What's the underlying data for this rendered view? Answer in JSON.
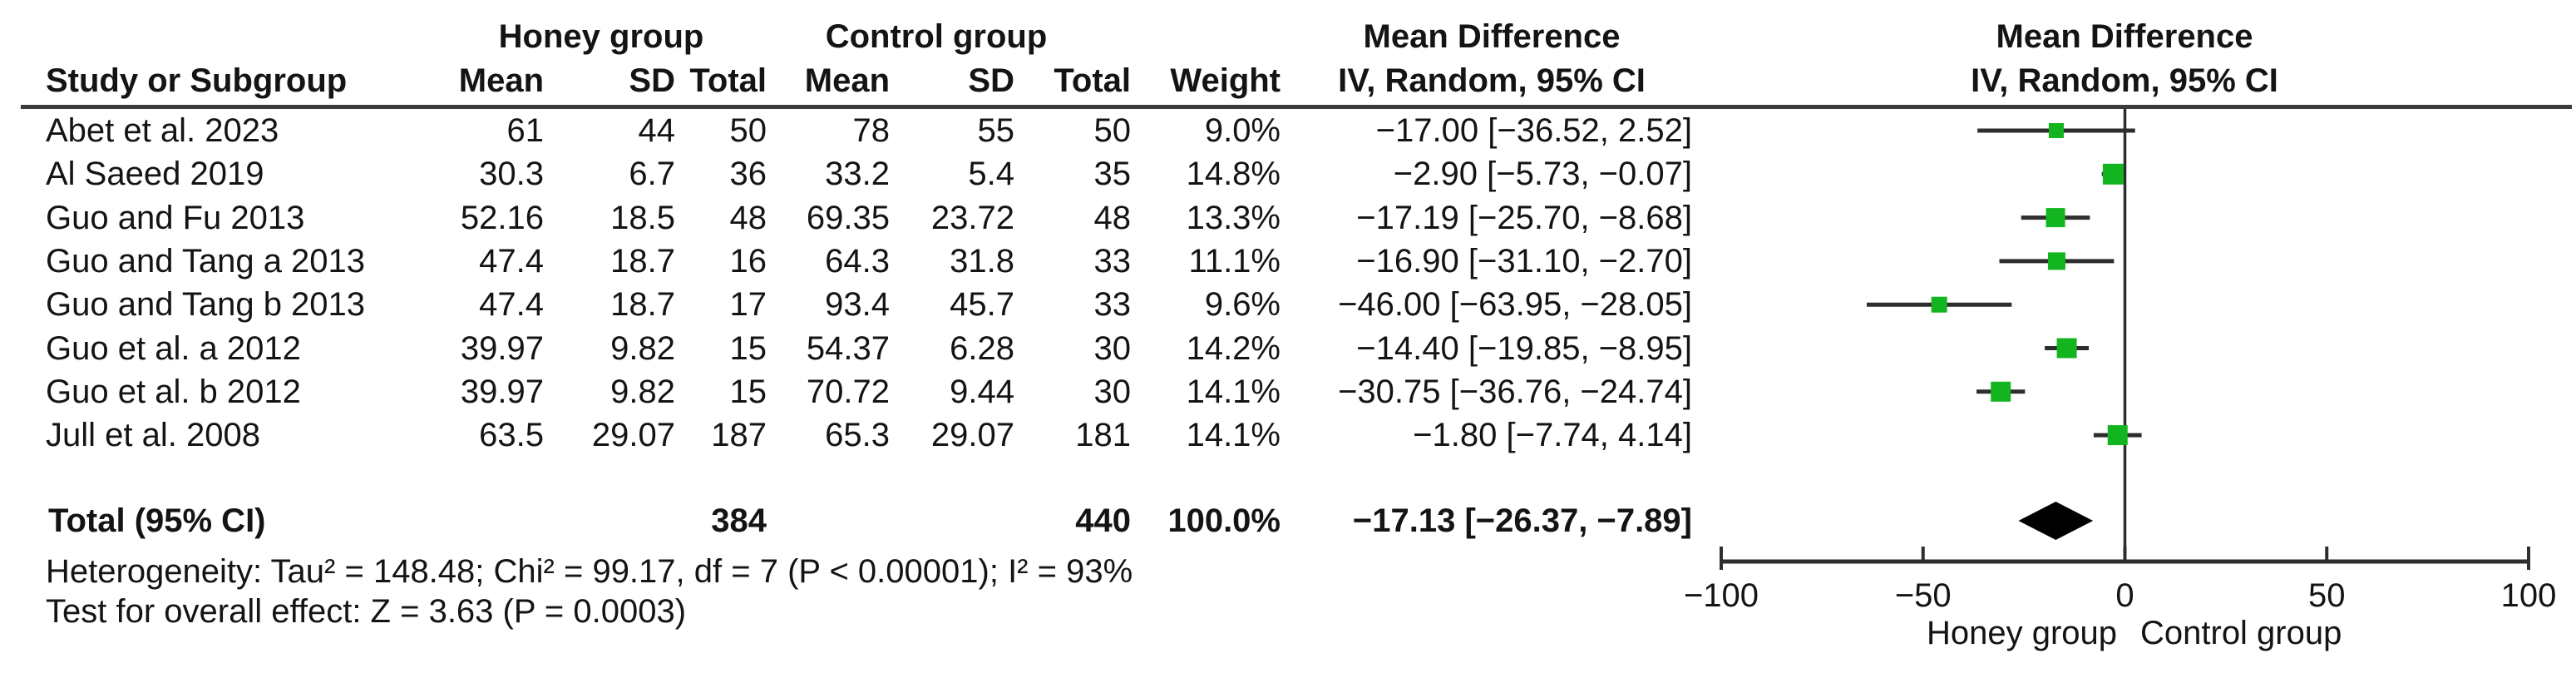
{
  "header": {
    "study": "Study or Subgroup",
    "honey_group": "Honey group",
    "control_group": "Control group",
    "mean": "Mean",
    "sd": "SD",
    "total": "Total",
    "weight": "Weight",
    "md_line1": "Mean Difference",
    "md_line2": "IV, Random, 95% CI"
  },
  "total_row": {
    "label": "Total (95% CI)",
    "honey_total": "384",
    "control_total": "440",
    "weight": "100.0%",
    "ci": "−17.13 [−26.37, −7.89]"
  },
  "footer": {
    "heterogeneity": "Heterogeneity: Tau² = 148.48; Chi² = 99.17, df = 7 (P < 0.00001); I² = 93%",
    "overall_effect": "Test for overall effect: Z = 3.63 (P = 0.0003)"
  },
  "chart_data": {
    "type": "forest_plot",
    "effect_measure": "Mean Difference, IV, Random, 95% CI",
    "axis": {
      "min": -100,
      "max": 100,
      "ticks": [
        -100,
        -50,
        0,
        50,
        100
      ],
      "left_label": "Honey group",
      "right_label": "Control group"
    },
    "studies": [
      {
        "name": "Abet et al. 2023",
        "h_mean": "61",
        "h_sd": "44",
        "h_total": "50",
        "c_mean": "78",
        "c_sd": "55",
        "c_total": "50",
        "weight": "9.0%",
        "weight_value": 9.0,
        "md": -17.0,
        "ci_low": -36.52,
        "ci_high": 2.52,
        "md_label": "−17.00 [−36.52, 2.52]"
      },
      {
        "name": "Al Saeed 2019",
        "h_mean": "30.3",
        "h_sd": "6.7",
        "h_total": "36",
        "c_mean": "33.2",
        "c_sd": "5.4",
        "c_total": "35",
        "weight": "14.8%",
        "weight_value": 14.8,
        "md": -2.9,
        "ci_low": -5.73,
        "ci_high": -0.07,
        "md_label": "−2.90 [−5.73, −0.07]"
      },
      {
        "name": "Guo and Fu 2013",
        "h_mean": "52.16",
        "h_sd": "18.5",
        "h_total": "48",
        "c_mean": "69.35",
        "c_sd": "23.72",
        "c_total": "48",
        "weight": "13.3%",
        "weight_value": 13.3,
        "md": -17.19,
        "ci_low": -25.7,
        "ci_high": -8.68,
        "md_label": "−17.19 [−25.70, −8.68]"
      },
      {
        "name": "Guo and Tang a 2013",
        "h_mean": "47.4",
        "h_sd": "18.7",
        "h_total": "16",
        "c_mean": "64.3",
        "c_sd": "31.8",
        "c_total": "33",
        "weight": "11.1%",
        "weight_value": 11.1,
        "md": -16.9,
        "ci_low": -31.1,
        "ci_high": -2.7,
        "md_label": "−16.90 [−31.10, −2.70]"
      },
      {
        "name": "Guo and Tang b 2013",
        "h_mean": "47.4",
        "h_sd": "18.7",
        "h_total": "17",
        "c_mean": "93.4",
        "c_sd": "45.7",
        "c_total": "33",
        "weight": "9.6%",
        "weight_value": 9.6,
        "md": -46.0,
        "ci_low": -63.95,
        "ci_high": -28.05,
        "md_label": "−46.00 [−63.95, −28.05]"
      },
      {
        "name": "Guo et al. a 2012",
        "h_mean": "39.97",
        "h_sd": "9.82",
        "h_total": "15",
        "c_mean": "54.37",
        "c_sd": "6.28",
        "c_total": "30",
        "weight": "14.2%",
        "weight_value": 14.2,
        "md": -14.4,
        "ci_low": -19.85,
        "ci_high": -8.95,
        "md_label": "−14.40 [−19.85, −8.95]"
      },
      {
        "name": "Guo et al. b 2012",
        "h_mean": "39.97",
        "h_sd": "9.82",
        "h_total": "15",
        "c_mean": "70.72",
        "c_sd": "9.44",
        "c_total": "30",
        "weight": "14.1%",
        "weight_value": 14.1,
        "md": -30.75,
        "ci_low": -36.76,
        "ci_high": -24.74,
        "md_label": "−30.75 [−36.76, −24.74]"
      },
      {
        "name": "Jull et al. 2008",
        "h_mean": "63.5",
        "h_sd": "29.07",
        "h_total": "187",
        "c_mean": "65.3",
        "c_sd": "29.07",
        "c_total": "181",
        "weight": "14.1%",
        "weight_value": 14.1,
        "md": -1.8,
        "ci_low": -7.74,
        "ci_high": 4.14,
        "md_label": "−1.80 [−7.74, 4.14]"
      }
    ],
    "total": {
      "md": -17.13,
      "ci_low": -26.37,
      "ci_high": -7.89
    },
    "colors": {
      "square": "#12b41f",
      "ci_line": "#2d2d2d",
      "diamond": "#000000",
      "axis": "#2d2d2d",
      "rule": "#3a3a3a"
    }
  }
}
